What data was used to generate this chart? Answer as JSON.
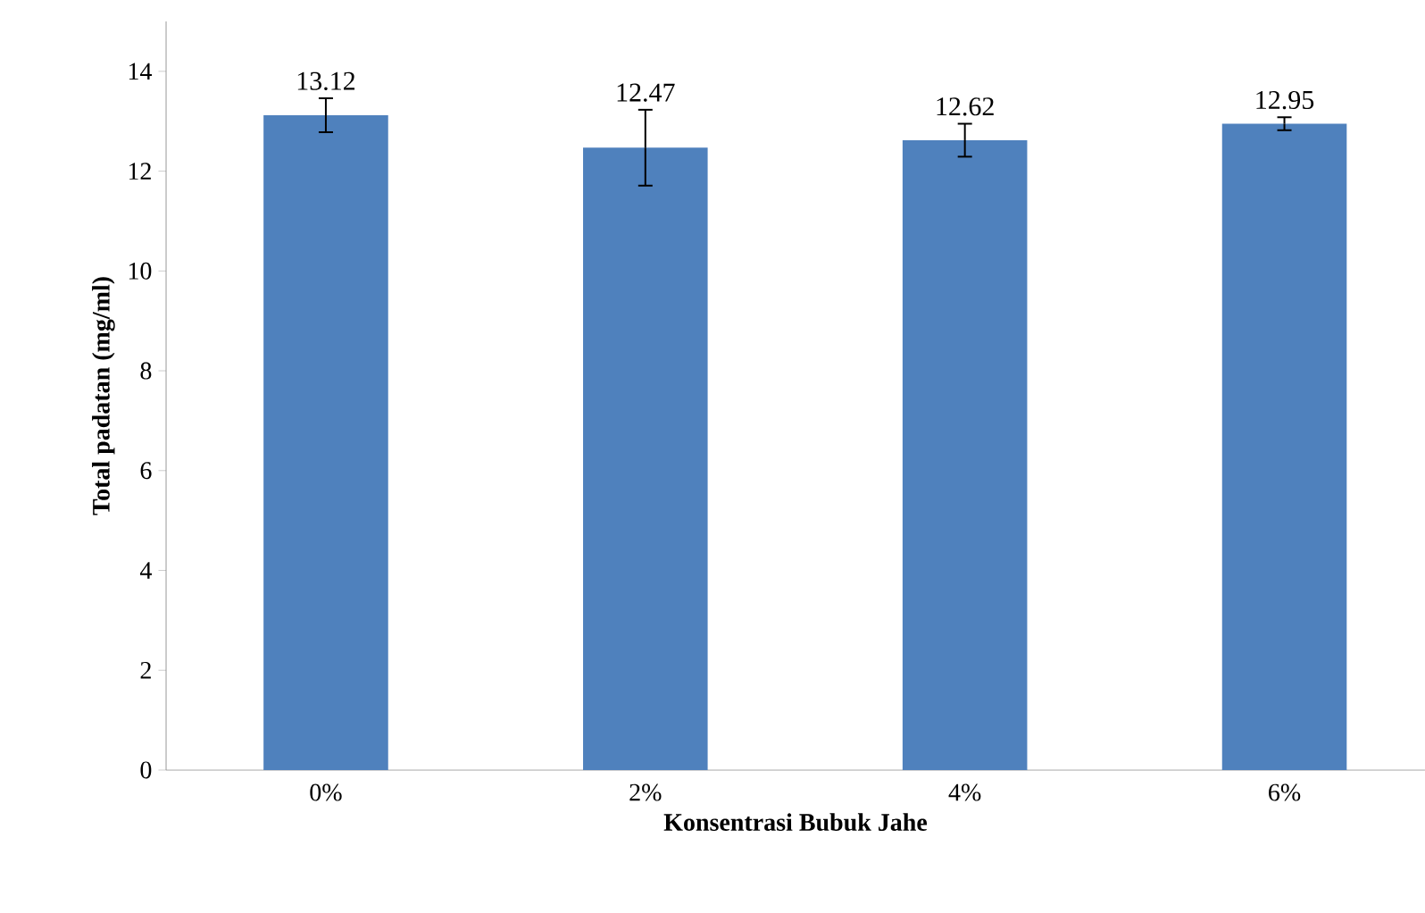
{
  "chart_data": {
    "type": "bar",
    "xlabel": "Konsentrasi Bubuk Jahe",
    "ylabel": "Total padatan (mg/ml)",
    "categories": [
      "0%",
      "2%",
      "4%",
      "6%"
    ],
    "values": [
      13.12,
      12.47,
      12.62,
      12.95
    ],
    "errors": [
      0.34,
      0.76,
      0.33,
      0.13
    ],
    "color": "#4f81bd",
    "data_labels": true,
    "ylim": [
      0,
      15
    ],
    "yticks": [
      0,
      2,
      4,
      6,
      8,
      10,
      12,
      14
    ],
    "grid": false
  }
}
